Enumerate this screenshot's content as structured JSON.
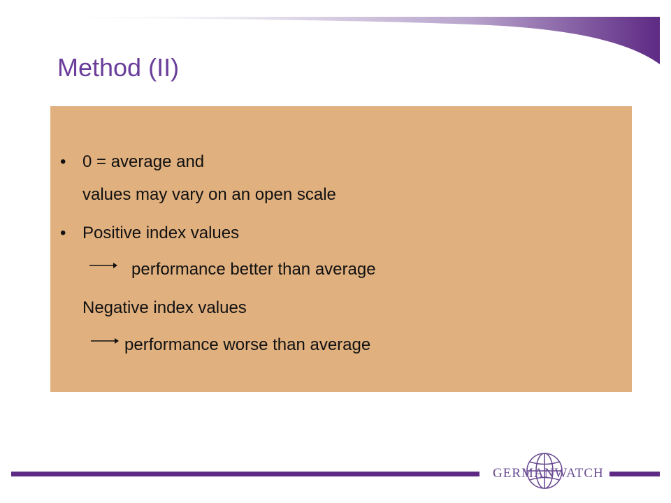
{
  "slide": {
    "title": "Method (II)"
  },
  "content": {
    "bullet_1_line_1": "0 = average and",
    "bullet_1_line_2": "values may vary on an open scale",
    "bullet_2_line_1": "Positive index values",
    "bullet_2_line_2": "performance better than average",
    "bullet_2_line_3": "Negative index values",
    "bullet_2_line_4": "performance worse than average",
    "bullet_symbol": "•"
  },
  "logo": {
    "text": "GERMANWATCH",
    "icon": "globe-icon"
  },
  "colors": {
    "accent_purple": "#5e2a84",
    "title_purple": "#6a3d9a",
    "box_fill": "#e0b07f"
  }
}
